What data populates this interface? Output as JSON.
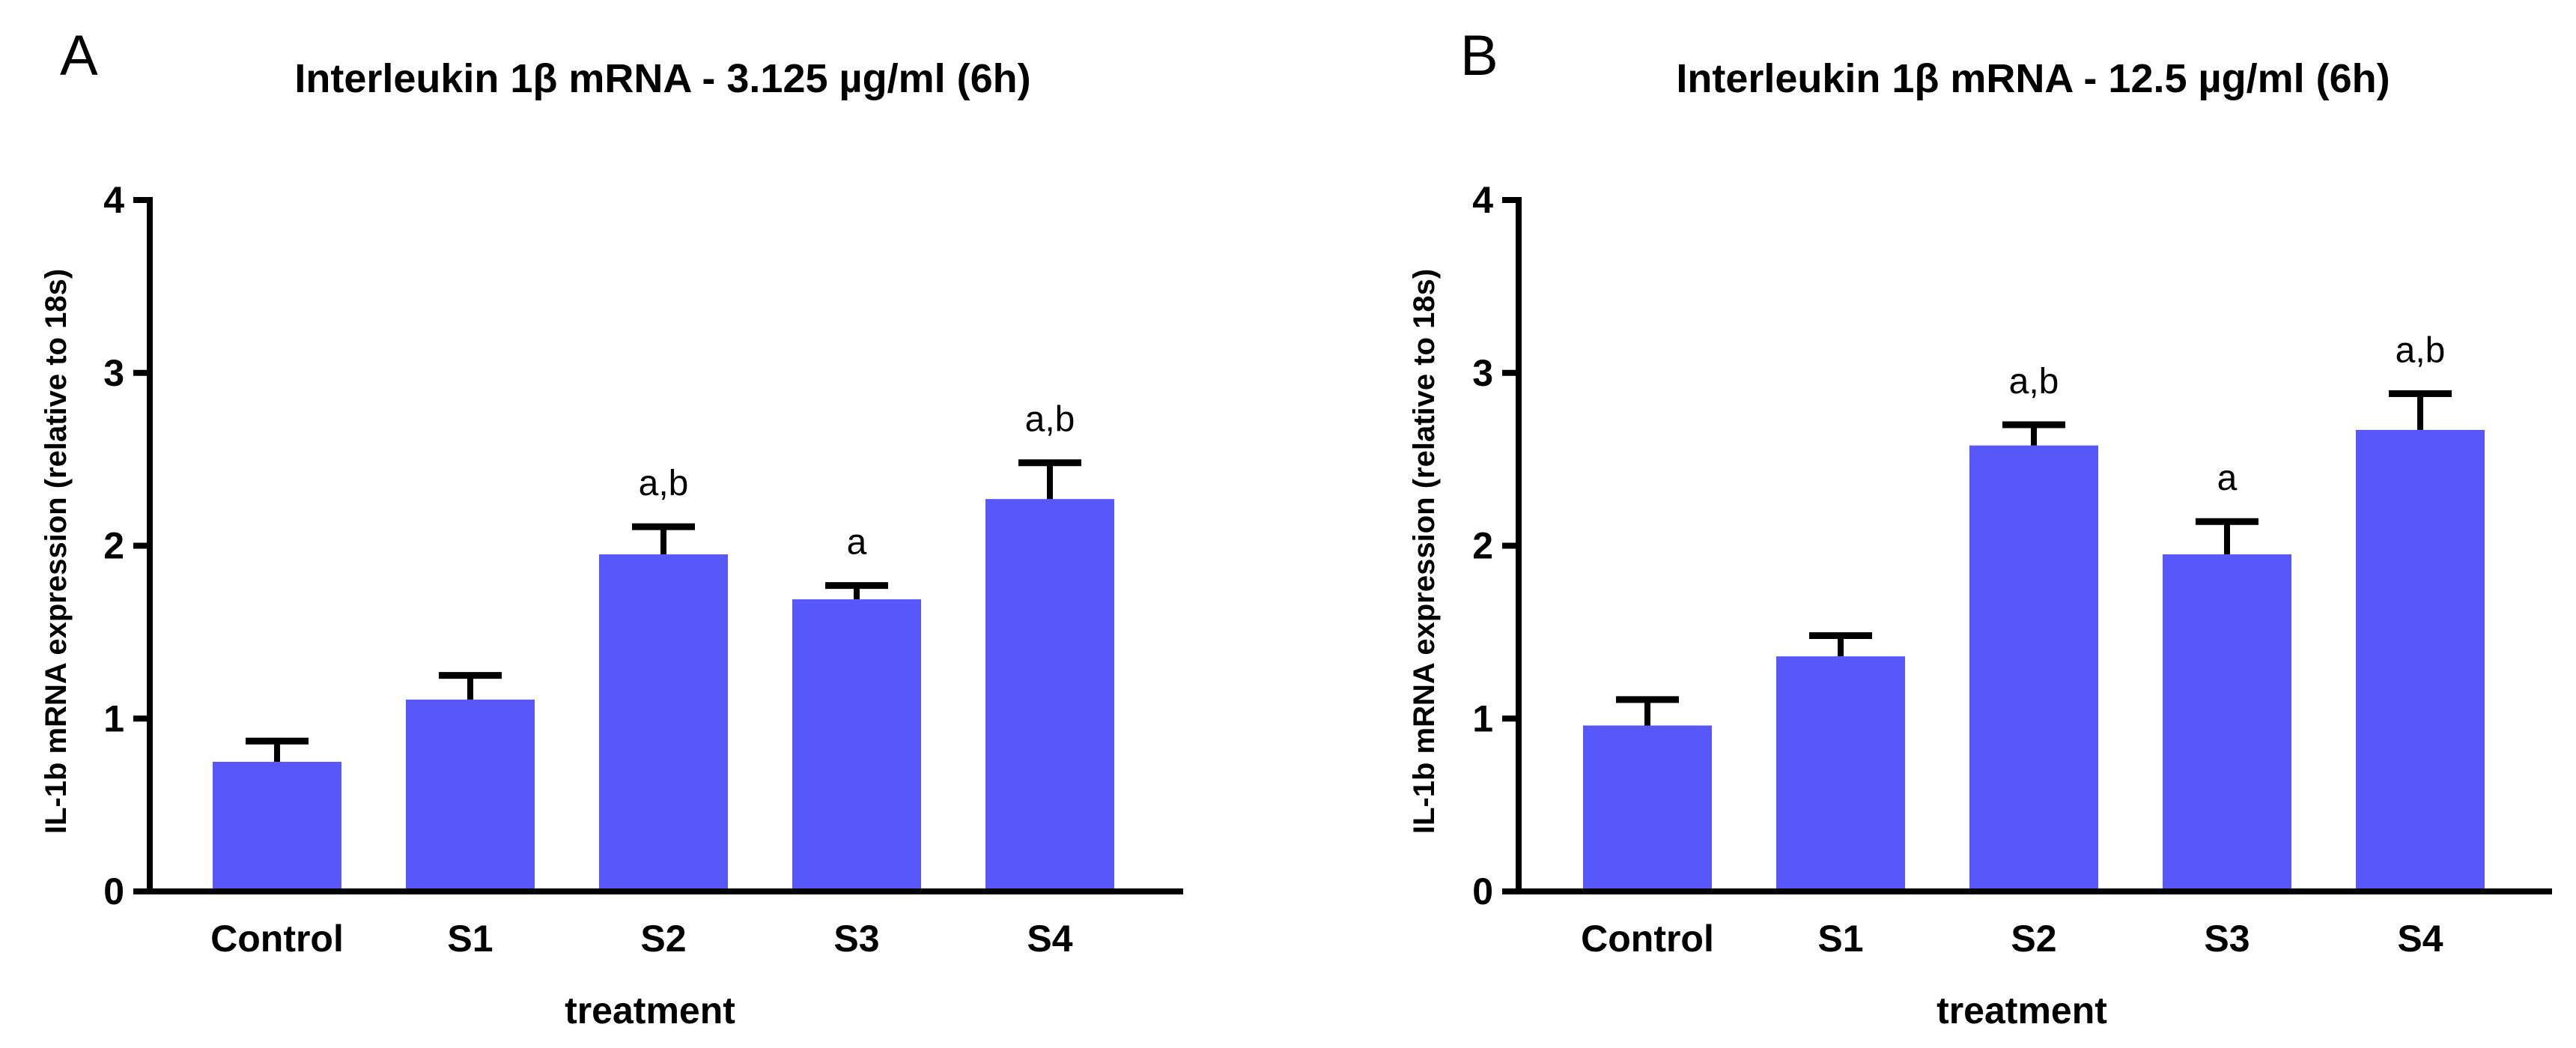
{
  "colors": {
    "bar": "#5858fa",
    "axis": "#000000",
    "text": "#000000"
  },
  "chart_data": [
    {
      "type": "bar",
      "panel": "A",
      "title": "Interleukin 1β mRNA - 3.125 µg/ml (6h)",
      "xlabel": "treatment",
      "ylabel": "IL-1b mRNA expression (relative to 18s)",
      "ylim": [
        0,
        4
      ],
      "yticks": [
        "0",
        "1",
        "2",
        "3",
        "4"
      ],
      "categories": [
        "Control",
        "S1",
        "S2",
        "S3",
        "S4"
      ],
      "values": [
        0.75,
        1.11,
        1.95,
        1.69,
        2.27
      ],
      "errors": [
        0.12,
        0.14,
        0.16,
        0.08,
        0.21
      ],
      "annotations": [
        "",
        "",
        "a,b",
        "a",
        "a,b"
      ]
    },
    {
      "type": "bar",
      "panel": "B",
      "title": "Interleukin 1β mRNA - 12.5 µg/ml (6h)",
      "xlabel": "treatment",
      "ylabel": "IL-1b mRNA expression (relative to 18s)",
      "ylim": [
        0,
        4
      ],
      "yticks": [
        "0",
        "1",
        "2",
        "3",
        "4"
      ],
      "categories": [
        "Control",
        "S1",
        "S2",
        "S3",
        "S4"
      ],
      "values": [
        0.96,
        1.36,
        2.58,
        1.95,
        2.67
      ],
      "errors": [
        0.15,
        0.12,
        0.12,
        0.19,
        0.21
      ],
      "annotations": [
        "",
        "",
        "a,b",
        "a",
        "a,b"
      ]
    }
  ]
}
